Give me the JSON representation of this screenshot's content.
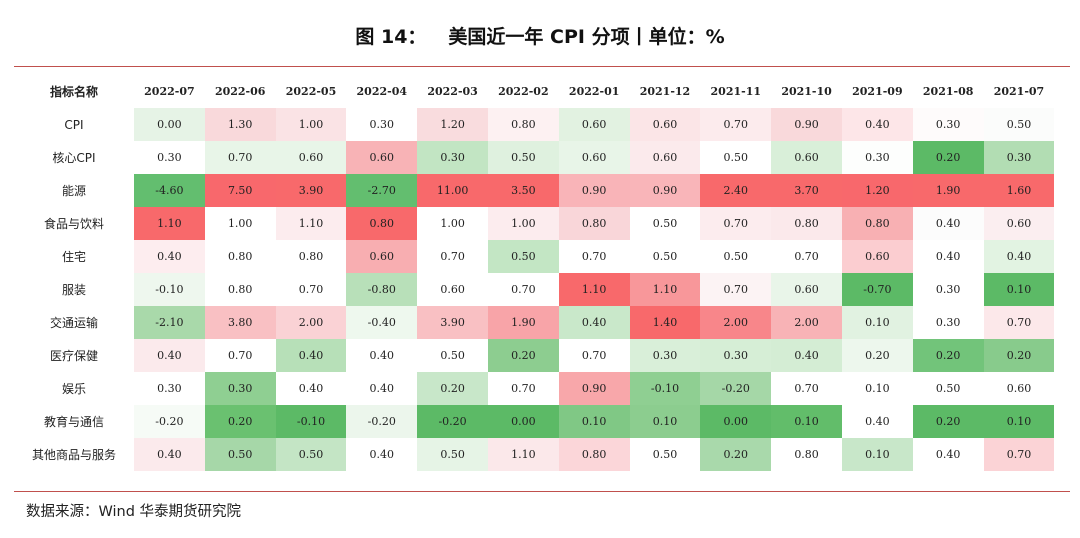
{
  "title_label": "图 14：",
  "title_text": "美国近一年 CPI 分项丨单位：%",
  "source_label": "数据来源：",
  "source_text": "Wind  华泰期货研究院",
  "chart_data": {
    "type": "heatmap",
    "corner_header": "指标名称",
    "columns": [
      "2022-07",
      "2022-06",
      "2022-05",
      "2022-04",
      "2022-03",
      "2022-02",
      "2022-01",
      "2021-12",
      "2021-11",
      "2021-10",
      "2021-09",
      "2021-08",
      "2021-07"
    ],
    "rows": [
      {
        "name": "CPI",
        "values": [
          "0.00",
          "1.30",
          "1.00",
          "0.30",
          "1.20",
          "0.80",
          "0.60",
          "0.60",
          "0.70",
          "0.90",
          "0.40",
          "0.30",
          "0.50"
        ],
        "colors": [
          "#e6f3e6",
          "#f9d9db",
          "#fae3e5",
          "#ffffff",
          "#f9dcde",
          "#fdf1f2",
          "#e2f2e1",
          "#fbe5e7",
          "#fcebed",
          "#f9d9db",
          "#fde6e8",
          "#fefbfb",
          "#fbfcfb"
        ]
      },
      {
        "name": "核心CPI",
        "values": [
          "0.30",
          "0.70",
          "0.60",
          "0.60",
          "0.30",
          "0.50",
          "0.60",
          "0.60",
          "0.50",
          "0.60",
          "0.30",
          "0.20",
          "0.30"
        ],
        "colors": [
          "#ffffff",
          "#e8f5e8",
          "#e8f5e8",
          "#f8b3b6",
          "#c2e5c3",
          "#dff1df",
          "#e8f5e8",
          "#fbeaec",
          "#ffffff",
          "#d9efd9",
          "#fdfefd",
          "#5cba66",
          "#b2ddb3"
        ]
      },
      {
        "name": "能源",
        "values": [
          "-4.60",
          "7.50",
          "3.90",
          "-2.70",
          "11.00",
          "3.50",
          "0.90",
          "0.90",
          "2.40",
          "3.70",
          "1.20",
          "1.90",
          "1.60"
        ],
        "colors": [
          "#63be6f",
          "#f8686c",
          "#f8696b",
          "#63be6f",
          "#f8696b",
          "#f8696b",
          "#f9b4b8",
          "#f9b5b9",
          "#f8696b",
          "#f8696b",
          "#f8686c",
          "#f8696b",
          "#f8696b"
        ]
      },
      {
        "name": "食品与饮料",
        "values": [
          "1.10",
          "1.00",
          "1.10",
          "0.80",
          "1.00",
          "1.00",
          "0.80",
          "0.50",
          "0.70",
          "0.80",
          "0.80",
          "0.40",
          "0.60"
        ],
        "colors": [
          "#f8696b",
          "#ffffff",
          "#fcecee",
          "#f8696b",
          "#ffffff",
          "#fcecee",
          "#f9d6d9",
          "#ffffff",
          "#fcecee",
          "#fbe9eb",
          "#f8b0b3",
          "#fcfcfc",
          "#fbeef0"
        ]
      },
      {
        "name": "住宅",
        "values": [
          "0.40",
          "0.80",
          "0.80",
          "0.60",
          "0.70",
          "0.50",
          "0.70",
          "0.50",
          "0.50",
          "0.70",
          "0.60",
          "0.40",
          "0.40"
        ],
        "colors": [
          "#fdedef",
          "#ffffff",
          "#ffffff",
          "#f8aeb1",
          "#ffffff",
          "#c3e6c4",
          "#ffffff",
          "#ffffff",
          "#ffffff",
          "#ffffff",
          "#fbcdd0",
          "#ffffff",
          "#e2f3e2"
        ]
      },
      {
        "name": "服装",
        "values": [
          "-0.10",
          "0.80",
          "0.70",
          "-0.80",
          "0.60",
          "0.70",
          "1.10",
          "1.10",
          "0.70",
          "0.60",
          "-0.70",
          "0.30",
          "0.10"
        ],
        "colors": [
          "#eef7ee",
          "#ffffff",
          "#ffffff",
          "#b8e0b9",
          "#ffffff",
          "#ffffff",
          "#f8696b",
          "#f8979a",
          "#fcf3f4",
          "#e9f5e9",
          "#5cba66",
          "#ffffff",
          "#5cba66"
        ]
      },
      {
        "name": "交通运输",
        "values": [
          "-2.10",
          "3.80",
          "2.00",
          "-0.40",
          "3.90",
          "1.90",
          "0.40",
          "1.40",
          "2.00",
          "2.00",
          "0.10",
          "0.30",
          "0.70"
        ],
        "colors": [
          "#a9d9aa",
          "#f9c0c3",
          "#fad2d5",
          "#eef8ee",
          "#f9c0c3",
          "#f8a4a8",
          "#c9e8ca",
          "#f8696b",
          "#f8868a",
          "#f8b3b6",
          "#e1f2e1",
          "#ffffff",
          "#fce8ea"
        ]
      },
      {
        "name": "医疗保健",
        "values": [
          "0.40",
          "0.70",
          "0.40",
          "0.40",
          "0.50",
          "0.20",
          "0.70",
          "0.30",
          "0.30",
          "0.40",
          "0.20",
          "0.20",
          "0.20"
        ],
        "colors": [
          "#fbeaec",
          "#ffffff",
          "#b7e0b8",
          "#ffffff",
          "#ffffff",
          "#8dcd90",
          "#ffffff",
          "#d9efd9",
          "#d6eed6",
          "#d4edd4",
          "#edf7ed",
          "#72c47a",
          "#88cb8c"
        ]
      },
      {
        "name": "娱乐",
        "values": [
          "0.30",
          "0.30",
          "0.40",
          "0.40",
          "0.20",
          "0.70",
          "0.90",
          "-0.10",
          "-0.20",
          "0.70",
          "0.10",
          "0.50",
          "0.60"
        ],
        "colors": [
          "#ffffff",
          "#8fcf92",
          "#ffffff",
          "#ffffff",
          "#c8e7c9",
          "#ffffff",
          "#f8a7aa",
          "#8fcf92",
          "#a5d7a7",
          "#ffffff",
          "#ffffff",
          "#ffffff",
          "#ffffff"
        ]
      },
      {
        "name": "教育与通信",
        "values": [
          "-0.20",
          "0.20",
          "-0.10",
          "-0.20",
          "-0.20",
          "0.00",
          "0.10",
          "0.10",
          "0.00",
          "0.10",
          "0.40",
          "0.20",
          "0.10"
        ],
        "colors": [
          "#f6fbf6",
          "#6ac170",
          "#5cba66",
          "#ecf6ec",
          "#5cba66",
          "#5cba66",
          "#80c885",
          "#8ccd8f",
          "#5cba66",
          "#62bd6a",
          "#ffffff",
          "#5cba66",
          "#5cba66"
        ]
      },
      {
        "name": "其他商品与服务",
        "values": [
          "0.40",
          "0.50",
          "0.50",
          "0.40",
          "0.50",
          "1.10",
          "0.80",
          "0.50",
          "0.20",
          "0.80",
          "0.10",
          "0.40",
          "0.70"
        ],
        "colors": [
          "#fbeaec",
          "#a6d7a8",
          "#c4e5c5",
          "#ffffff",
          "#e6f4e6",
          "#fbe8ea",
          "#fbd6d9",
          "#ffffff",
          "#a9d9ab",
          "#ffffff",
          "#c8e7c9",
          "#ffffff",
          "#fbd3d6"
        ]
      }
    ]
  }
}
